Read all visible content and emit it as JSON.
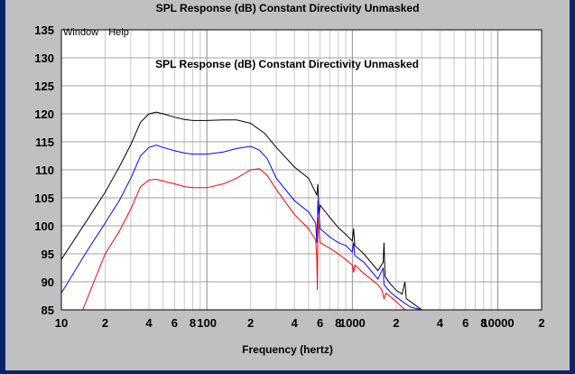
{
  "window": {
    "title": "SPL Response (dB)   Constant Directivity   Unmasked",
    "menu": [
      "Window",
      "Help"
    ]
  },
  "chart_data": {
    "type": "line",
    "title": "SPL Response (dB)   Constant Directivity   Unmasked",
    "xlabel": "Frequency (hertz)",
    "ylabel": "",
    "x_scale": "log",
    "xlim": [
      10,
      20000
    ],
    "ylim": [
      85,
      135
    ],
    "y_ticks": [
      85,
      90,
      95,
      100,
      105,
      110,
      115,
      120,
      125,
      130,
      135
    ],
    "x_tick_labels": [
      {
        "x": 10,
        "label": "10"
      },
      {
        "x": 20,
        "label": "2"
      },
      {
        "x": 40,
        "label": "4"
      },
      {
        "x": 60,
        "label": "6"
      },
      {
        "x": 80,
        "label": "8"
      },
      {
        "x": 100,
        "label": "100"
      },
      {
        "x": 200,
        "label": "2"
      },
      {
        "x": 400,
        "label": "4"
      },
      {
        "x": 600,
        "label": "6"
      },
      {
        "x": 800,
        "label": "8"
      },
      {
        "x": 1000,
        "label": "1000"
      },
      {
        "x": 2000,
        "label": "2"
      },
      {
        "x": 4000,
        "label": "4"
      },
      {
        "x": 6000,
        "label": "6"
      },
      {
        "x": 8000,
        "label": "8"
      },
      {
        "x": 10000,
        "label": "10000"
      },
      {
        "x": 20000,
        "label": "2"
      }
    ],
    "grid": true,
    "series": [
      {
        "color": "#000000",
        "points": [
          [
            10,
            94
          ],
          [
            15,
            101
          ],
          [
            20,
            106
          ],
          [
            25,
            110.5
          ],
          [
            30,
            114.5
          ],
          [
            35,
            118.5
          ],
          [
            40,
            120
          ],
          [
            45,
            120.3
          ],
          [
            50,
            120
          ],
          [
            60,
            119.4
          ],
          [
            70,
            119
          ],
          [
            80,
            118.8
          ],
          [
            100,
            118.8
          ],
          [
            130,
            118.9
          ],
          [
            160,
            118.9
          ],
          [
            200,
            118.3
          ],
          [
            250,
            116.5
          ],
          [
            300,
            114
          ],
          [
            400,
            110.5
          ],
          [
            500,
            108.5
          ],
          [
            570,
            105.5
          ],
          [
            580,
            107.5
          ],
          [
            590,
            102
          ],
          [
            600,
            103.7
          ],
          [
            700,
            101.5
          ],
          [
            800,
            99.7
          ],
          [
            900,
            98.5
          ],
          [
            1000,
            97.3
          ],
          [
            1020,
            99.5
          ],
          [
            1040,
            96.5
          ],
          [
            1200,
            95
          ],
          [
            1500,
            92
          ],
          [
            1630,
            93.5
          ],
          [
            1650,
            97
          ],
          [
            1680,
            91
          ],
          [
            1800,
            89.8
          ],
          [
            2000,
            88.5
          ],
          [
            2200,
            87.8
          ],
          [
            2300,
            90
          ],
          [
            2350,
            87
          ],
          [
            2500,
            86.5
          ],
          [
            3000,
            85
          ]
        ]
      },
      {
        "color": "#0000ff",
        "points": [
          [
            10,
            88
          ],
          [
            15,
            95.5
          ],
          [
            20,
            100.5
          ],
          [
            25,
            104.5
          ],
          [
            30,
            108.5
          ],
          [
            35,
            112.5
          ],
          [
            40,
            114
          ],
          [
            45,
            114.4
          ],
          [
            50,
            114
          ],
          [
            60,
            113.4
          ],
          [
            70,
            113
          ],
          [
            80,
            112.8
          ],
          [
            100,
            112.8
          ],
          [
            130,
            113.2
          ],
          [
            160,
            113.8
          ],
          [
            200,
            114.2
          ],
          [
            230,
            113.5
          ],
          [
            260,
            112
          ],
          [
            300,
            108.5
          ],
          [
            400,
            104.5
          ],
          [
            500,
            102.5
          ],
          [
            560,
            100.5
          ],
          [
            570,
            97
          ],
          [
            580,
            104.5
          ],
          [
            600,
            99.5
          ],
          [
            700,
            98
          ],
          [
            800,
            97
          ],
          [
            900,
            96.5
          ],
          [
            1000,
            95.3
          ],
          [
            1020,
            97
          ],
          [
            1040,
            94.7
          ],
          [
            1200,
            93.5
          ],
          [
            1500,
            90.5
          ],
          [
            1630,
            92.5
          ],
          [
            1650,
            89.5
          ],
          [
            1800,
            88.3
          ],
          [
            2000,
            87.3
          ],
          [
            2500,
            85.5
          ],
          [
            3000,
            85
          ]
        ]
      },
      {
        "color": "#ff0000",
        "points": [
          [
            14,
            85
          ],
          [
            20,
            95
          ],
          [
            25,
            99
          ],
          [
            30,
            103
          ],
          [
            35,
            107
          ],
          [
            40,
            108.2
          ],
          [
            45,
            108.3
          ],
          [
            50,
            108
          ],
          [
            60,
            107.5
          ],
          [
            70,
            107
          ],
          [
            80,
            106.8
          ],
          [
            100,
            106.8
          ],
          [
            130,
            107.5
          ],
          [
            160,
            108.5
          ],
          [
            200,
            110
          ],
          [
            230,
            110.2
          ],
          [
            260,
            109
          ],
          [
            300,
            106.5
          ],
          [
            400,
            102
          ],
          [
            500,
            99.5
          ],
          [
            560,
            97.5
          ],
          [
            570,
            94
          ],
          [
            575,
            88.5
          ],
          [
            580,
            101.5
          ],
          [
            600,
            97
          ],
          [
            700,
            96
          ],
          [
            800,
            95
          ],
          [
            900,
            94
          ],
          [
            1000,
            93
          ],
          [
            1020,
            91.7
          ],
          [
            1040,
            93
          ],
          [
            1200,
            91.5
          ],
          [
            1500,
            89.5
          ],
          [
            1600,
            88.5
          ],
          [
            1650,
            87
          ],
          [
            1700,
            88
          ],
          [
            2000,
            86.5
          ],
          [
            2300,
            85
          ]
        ]
      }
    ]
  }
}
